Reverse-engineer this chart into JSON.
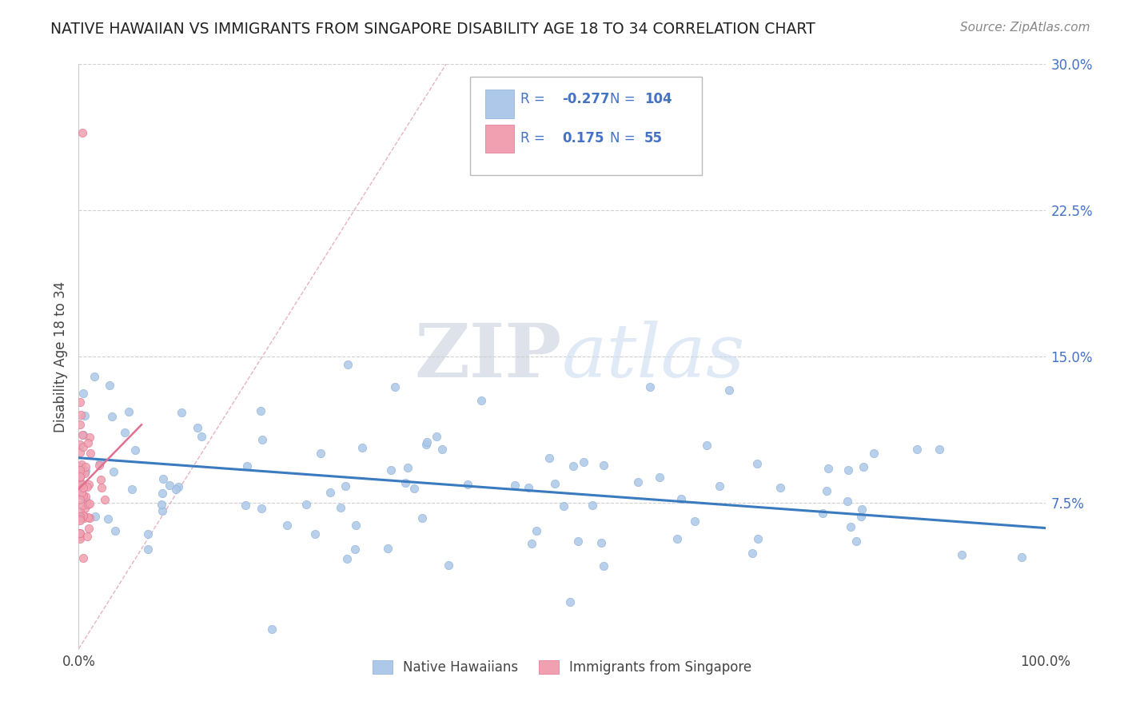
{
  "title": "NATIVE HAWAIIAN VS IMMIGRANTS FROM SINGAPORE DISABILITY AGE 18 TO 34 CORRELATION CHART",
  "source": "Source: ZipAtlas.com",
  "ylabel": "Disability Age 18 to 34",
  "xlim": [
    0.0,
    1.0
  ],
  "ylim": [
    0.0,
    0.3
  ],
  "ytick_values": [
    0.075,
    0.15,
    0.225,
    0.3
  ],
  "ytick_labels": [
    "7.5%",
    "15.0%",
    "22.5%",
    "30.0%"
  ],
  "xtick_values": [
    0.0,
    1.0
  ],
  "xtick_labels": [
    "0.0%",
    "100.0%"
  ],
  "native_hawaiian_color": "#adc8e8",
  "singapore_color": "#f0a0b0",
  "trend_native_color": "#3a7abf",
  "trend_singapore_color": "#e07090",
  "watermark_text": "ZIPatlas",
  "background_color": "#ffffff",
  "axis_color": "#4472c4",
  "legend1_label_r": "R =",
  "legend1_r_val": "-0.277",
  "legend1_n": "N =",
  "legend1_n_val": "104",
  "legend2_label_r": "R =",
  "legend2_r_val": "0.175",
  "legend2_n": "N =",
  "legend2_n_val": "55",
  "bottom_legend1": "Native Hawaiians",
  "bottom_legend2": "Immigrants from Singapore",
  "nh_trend_x0": 0.0,
  "nh_trend_x1": 1.0,
  "nh_trend_y0": 0.098,
  "nh_trend_y1": 0.062,
  "sg_trend_x0": 0.0,
  "sg_trend_x1": 0.065,
  "sg_trend_y0": 0.082,
  "sg_trend_y1": 0.115,
  "seed": 42
}
